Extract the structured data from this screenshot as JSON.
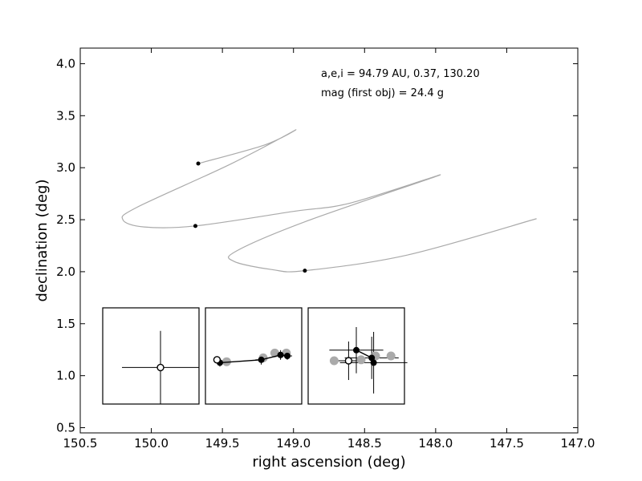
{
  "chart_data": {
    "type": "scatter",
    "xlabel": "right ascension (deg)",
    "ylabel": "declination (deg)",
    "xlim": [
      150.5,
      147.0
    ],
    "ylim": [
      0.45,
      4.15
    ],
    "x_ticks": [
      "150.5",
      "150.0",
      "149.5",
      "149.0",
      "148.5",
      "148.0",
      "147.5",
      "147.0"
    ],
    "x_tick_values": [
      150.5,
      150.0,
      149.5,
      149.0,
      148.5,
      148.0,
      147.5,
      147.0
    ],
    "y_ticks": [
      "0.5",
      "1.0",
      "1.5",
      "2.0",
      "2.5",
      "3.0",
      "3.5",
      "4.0"
    ],
    "y_tick_values": [
      0.5,
      1.0,
      1.5,
      2.0,
      2.5,
      3.0,
      3.5,
      4.0
    ],
    "grid": false,
    "annotations": [
      "a,e,i = 94.79 AU, 0.37, 130.20",
      "mag (first obj) =  24.4 g"
    ],
    "colors": {
      "orbit": "#aaaaaa",
      "points": "#000000"
    },
    "orbit_path": [
      [
        149.67,
        3.04
      ],
      [
        149.2,
        3.22
      ],
      [
        148.99,
        3.36
      ],
      [
        149.45,
        3.03
      ],
      [
        150.1,
        2.62
      ],
      [
        150.2,
        2.5
      ],
      [
        150.05,
        2.43
      ],
      [
        149.69,
        2.44
      ],
      [
        149.0,
        2.58
      ],
      [
        148.6,
        2.66
      ],
      [
        147.97,
        2.93
      ],
      [
        148.9,
        2.49
      ],
      [
        149.4,
        2.2
      ],
      [
        149.42,
        2.1
      ],
      [
        149.15,
        2.02
      ],
      [
        148.92,
        2.01
      ],
      [
        148.2,
        2.16
      ],
      [
        147.29,
        2.51
      ]
    ],
    "detections": [
      {
        "ra": 149.67,
        "dec": 3.04
      },
      {
        "ra": 149.69,
        "dec": 2.44
      },
      {
        "ra": 148.92,
        "dec": 2.01
      }
    ],
    "insets": [
      {
        "name": "inset-1",
        "open_points": [
          [
            0.6,
            0.62
          ]
        ],
        "filled_points": [],
        "gray_points": [],
        "errorbars": [
          {
            "x": 0.6,
            "y": 0.62,
            "xerr": 0.4,
            "yerr": 0.38
          }
        ]
      },
      {
        "name": "inset-2",
        "open_points": [
          [
            0.12,
            0.54
          ]
        ],
        "filled_points": [
          [
            0.15,
            0.57
          ],
          [
            0.58,
            0.54
          ],
          [
            0.78,
            0.49
          ],
          [
            0.85,
            0.5
          ]
        ],
        "gray_points": [
          [
            0.22,
            0.56
          ],
          [
            0.6,
            0.52
          ],
          [
            0.72,
            0.47
          ],
          [
            0.84,
            0.47
          ]
        ],
        "errorbars": [
          {
            "x": 0.15,
            "y": 0.57,
            "xerr": 0.05,
            "yerr": 0.04
          },
          {
            "x": 0.58,
            "y": 0.54,
            "xerr": 0.06,
            "yerr": 0.05
          },
          {
            "x": 0.78,
            "y": 0.49,
            "xerr": 0.05,
            "yerr": 0.05
          },
          {
            "x": 0.85,
            "y": 0.5,
            "xerr": 0.05,
            "yerr": 0.04
          }
        ]
      },
      {
        "name": "inset-3",
        "open_points": [
          [
            0.42,
            0.55
          ]
        ],
        "filled_points": [
          [
            0.5,
            0.44
          ],
          [
            0.66,
            0.52
          ],
          [
            0.68,
            0.57
          ]
        ],
        "gray_points": [
          [
            0.27,
            0.55
          ],
          [
            0.55,
            0.54
          ],
          [
            0.7,
            0.5
          ],
          [
            0.86,
            0.5
          ]
        ],
        "errorbars": [
          {
            "x": 0.5,
            "y": 0.44,
            "xerr": 0.28,
            "yerr": 0.24
          },
          {
            "x": 0.66,
            "y": 0.52,
            "xerr": 0.28,
            "yerr": 0.22
          },
          {
            "x": 0.68,
            "y": 0.57,
            "xerr": 0.35,
            "yerr": 0.32
          },
          {
            "x": 0.42,
            "y": 0.55,
            "xerr": 0.12,
            "yerr": 0.2
          }
        ]
      }
    ]
  }
}
